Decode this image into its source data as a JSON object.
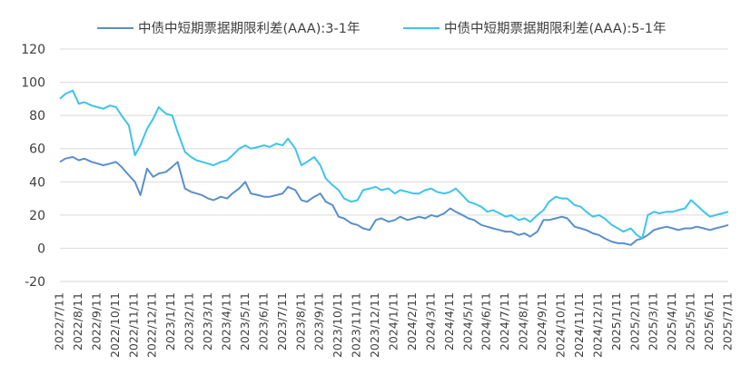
{
  "chart_data": {
    "type": "line",
    "title": "",
    "xlabel": "",
    "ylabel": "",
    "ylim": [
      -20,
      120
    ],
    "yticks": [
      -20,
      0,
      20,
      40,
      60,
      80,
      100,
      120
    ],
    "grid": "horizontal",
    "legend_position": "top",
    "x_tick_labels": [
      "2022/7/11",
      "2022/8/11",
      "2022/9/11",
      "2022/10/11",
      "2022/11/11",
      "2022/12/11",
      "2023/1/11",
      "2023/2/11",
      "2023/3/11",
      "2023/4/11",
      "2023/5/11",
      "2023/6/11",
      "2023/7/11",
      "2023/8/11",
      "2023/9/11",
      "2023/10/11",
      "2023/11/11",
      "2023/12/11",
      "2024/1/11",
      "2024/2/11",
      "2024/3/11",
      "2024/4/11",
      "2024/5/11",
      "2024/6/11",
      "2024/7/11",
      "2024/8/11",
      "2024/9/11",
      "2024/10/11",
      "2024/11/11",
      "2024/12/11",
      "2025/1/11",
      "2025/2/11",
      "2025/3/11",
      "2025/4/11",
      "2025/5/11",
      "2025/6/11",
      "2025/7/11"
    ],
    "x": [
      "2022-07-11",
      "2022-07-20",
      "2022-08-01",
      "2022-08-11",
      "2022-08-20",
      "2022-09-01",
      "2022-09-11",
      "2022-09-20",
      "2022-10-01",
      "2022-10-11",
      "2022-10-20",
      "2022-11-01",
      "2022-11-11",
      "2022-11-20",
      "2022-12-01",
      "2022-12-11",
      "2022-12-20",
      "2023-01-01",
      "2023-01-11",
      "2023-01-20",
      "2023-02-01",
      "2023-02-11",
      "2023-02-20",
      "2023-03-01",
      "2023-03-11",
      "2023-03-20",
      "2023-04-01",
      "2023-04-11",
      "2023-04-20",
      "2023-05-01",
      "2023-05-11",
      "2023-05-20",
      "2023-06-01",
      "2023-06-11",
      "2023-06-20",
      "2023-07-01",
      "2023-07-11",
      "2023-07-20",
      "2023-08-01",
      "2023-08-11",
      "2023-08-20",
      "2023-09-01",
      "2023-09-11",
      "2023-09-20",
      "2023-10-01",
      "2023-10-11",
      "2023-10-20",
      "2023-11-01",
      "2023-11-11",
      "2023-11-20",
      "2023-12-01",
      "2023-12-11",
      "2023-12-20",
      "2024-01-01",
      "2024-01-11",
      "2024-01-20",
      "2024-02-01",
      "2024-02-11",
      "2024-02-20",
      "2024-03-01",
      "2024-03-11",
      "2024-03-20",
      "2024-04-01",
      "2024-04-11",
      "2024-04-20",
      "2024-05-01",
      "2024-05-11",
      "2024-05-20",
      "2024-06-01",
      "2024-06-11",
      "2024-06-20",
      "2024-07-01",
      "2024-07-11",
      "2024-07-20",
      "2024-08-01",
      "2024-08-11",
      "2024-08-20",
      "2024-09-01",
      "2024-09-11",
      "2024-09-20",
      "2024-10-01",
      "2024-10-11",
      "2024-10-20",
      "2024-11-01",
      "2024-11-11",
      "2024-11-20",
      "2024-12-01",
      "2024-12-11",
      "2024-12-20",
      "2025-01-01",
      "2025-01-11",
      "2025-01-20",
      "2025-02-01",
      "2025-02-11",
      "2025-02-20",
      "2025-03-01",
      "2025-03-11",
      "2025-03-20",
      "2025-04-01",
      "2025-04-11",
      "2025-04-20",
      "2025-05-01",
      "2025-05-11",
      "2025-05-20",
      "2025-06-01",
      "2025-06-11",
      "2025-06-20",
      "2025-07-01",
      "2025-07-11"
    ],
    "series": [
      {
        "name": "中债中短期票据期限利差(AAA):3-1年",
        "color": "#5b8fc9",
        "values": [
          52,
          54,
          55,
          53,
          54,
          52,
          51,
          50,
          51,
          52,
          49,
          44,
          40,
          32,
          48,
          43,
          45,
          46,
          49,
          52,
          36,
          34,
          33,
          32,
          30,
          29,
          31,
          30,
          33,
          36,
          40,
          33,
          32,
          31,
          31,
          32,
          33,
          37,
          35,
          29,
          28,
          31,
          33,
          28,
          26,
          19,
          18,
          15,
          14,
          12,
          11,
          17,
          18,
          16,
          17,
          19,
          17,
          18,
          19,
          18,
          20,
          19,
          21,
          24,
          22,
          20,
          18,
          17,
          14,
          13,
          12,
          11,
          10,
          10,
          8,
          9,
          7,
          10,
          17,
          17,
          18,
          19,
          18,
          13,
          12,
          11,
          9,
          8,
          6,
          4,
          3,
          3,
          2,
          5,
          6,
          8,
          11,
          12,
          13,
          12,
          11,
          12,
          12,
          13,
          12,
          11,
          12,
          13,
          14
        ]
      },
      {
        "name": "中债中短期票据期限利差(AAA):5-1年",
        "color": "#3ec4ea",
        "values": [
          90,
          93,
          95,
          87,
          88,
          86,
          85,
          84,
          86,
          85,
          80,
          74,
          56,
          62,
          72,
          78,
          85,
          81,
          80,
          70,
          58,
          55,
          53,
          52,
          51,
          50,
          52,
          53,
          56,
          60,
          62,
          60,
          61,
          62,
          61,
          63,
          62,
          66,
          60,
          50,
          52,
          55,
          50,
          42,
          38,
          35,
          30,
          28,
          29,
          35,
          36,
          37,
          35,
          36,
          33,
          35,
          34,
          33,
          33,
          35,
          36,
          34,
          33,
          34,
          36,
          32,
          28,
          27,
          25,
          22,
          23,
          21,
          19,
          20,
          17,
          18,
          16,
          20,
          23,
          28,
          31,
          30,
          30,
          26,
          25,
          22,
          19,
          20,
          18,
          14,
          12,
          10,
          12,
          8,
          6,
          20,
          22,
          21,
          22,
          22,
          23,
          24,
          29,
          26,
          22,
          19,
          20,
          21,
          22
        ]
      }
    ]
  }
}
